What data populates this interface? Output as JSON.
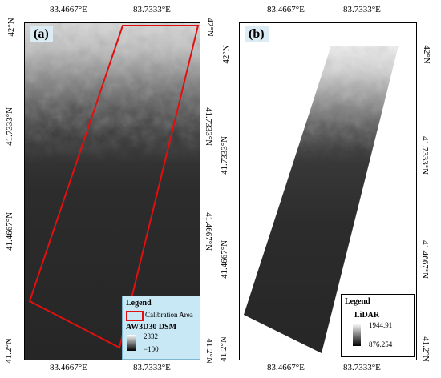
{
  "panel_a": {
    "tag": "(a)",
    "top_ticks": [
      "83.4667°E",
      "83.7333°E"
    ],
    "bottom_ticks": [
      "83.4667°E",
      "83.7333°E"
    ],
    "left_ticks": [
      "42°N",
      "41.7333°N",
      "41.4667°N",
      "41.2°N"
    ],
    "right_ticks": [
      "42°N",
      "41.7333°N",
      "41.4667°N",
      "41.2°N"
    ],
    "legend": {
      "title": "Legend",
      "calibration_label": "Calibration Area",
      "layer_name": "AW3D30 DSM",
      "max": "2332",
      "min": "−100"
    },
    "colors": {
      "calibration_outline": "#e01010",
      "legend_bg": "#c9e8f5"
    }
  },
  "panel_b": {
    "tag": "(b)",
    "top_ticks": [
      "83.4667°E",
      "83.7333°E"
    ],
    "bottom_ticks": [
      "83.4667°E",
      "83.7333°E"
    ],
    "left_ticks": [
      "42°N",
      "41.7333°N",
      "41.4667°N",
      "41.2°N"
    ],
    "right_ticks": [
      "42°N",
      "41.7333°N",
      "41.4667°N",
      "41.2°N"
    ],
    "legend": {
      "title": "Legend",
      "layer_name": "LiDAR",
      "max": "1944.91",
      "min": "876.254"
    }
  }
}
